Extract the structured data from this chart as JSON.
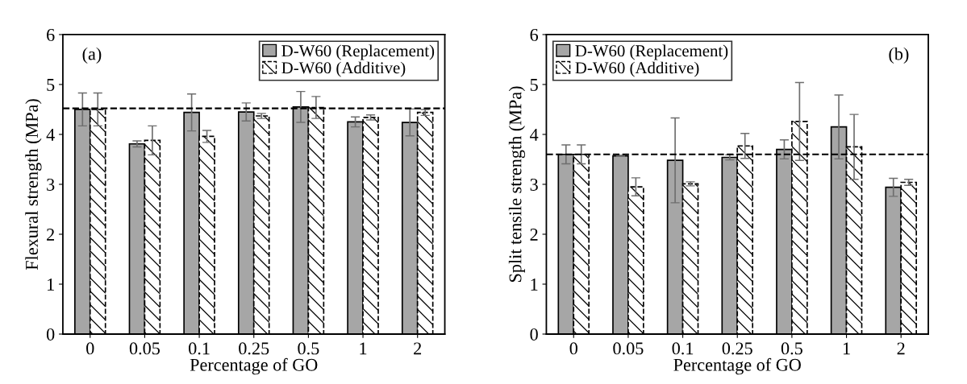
{
  "chart_data": [
    {
      "type": "bar",
      "categories": [
        "0",
        "0.05",
        "0.1",
        "0.25",
        "0.5",
        "1",
        "2"
      ],
      "xlabel": "Percentage of GO",
      "ylabel": "Flexural strength (MPa)",
      "ylim": [
        0,
        6
      ],
      "yticks": [
        0,
        1,
        2,
        3,
        4,
        5,
        6
      ],
      "grid": false,
      "legend": "top right",
      "annotations": [
        "(a)"
      ],
      "ref_lines": [
        {
          "axis": "y",
          "value": 4.52,
          "color": "#000000",
          "line_style": "dashed"
        }
      ],
      "series": [
        {
          "name": "D-W60 (Replacement)",
          "color": "#a6a6a6",
          "values": [
            4.5,
            3.81,
            4.44,
            4.45,
            4.55,
            4.25,
            4.24
          ],
          "errors": [
            0.33,
            0.06,
            0.37,
            0.18,
            0.31,
            0.1,
            0.27
          ]
        },
        {
          "name": "D-W60 (Additive)",
          "color": "#000000",
          "values": [
            4.5,
            3.88,
            3.96,
            4.37,
            4.54,
            4.34,
            4.44
          ],
          "errors": [
            0.33,
            0.29,
            0.12,
            0.05,
            0.22,
            0.05,
            0.06
          ]
        }
      ]
    },
    {
      "type": "bar",
      "categories": [
        "0",
        "0.05",
        "0.1",
        "0.25",
        "0.5",
        "1",
        "2"
      ],
      "xlabel": "Percentage of GO",
      "ylabel": "Split tensile strength (MPa)",
      "ylim": [
        0,
        6
      ],
      "yticks": [
        0,
        1,
        2,
        3,
        4,
        5,
        6
      ],
      "grid": false,
      "legend": "top left",
      "annotations": [
        "(b)"
      ],
      "ref_lines": [
        {
          "axis": "y",
          "value": 3.6,
          "color": "#000000",
          "line_style": "dashed"
        }
      ],
      "series": [
        {
          "name": "D-W60 (Replacement)",
          "color": "#a6a6a6",
          "values": [
            3.6,
            3.57,
            3.48,
            3.54,
            3.7,
            4.15,
            2.94
          ],
          "errors": [
            0.19,
            0.01,
            0.85,
            0.05,
            0.19,
            0.64,
            0.18
          ]
        },
        {
          "name": "D-W60 (Additive)",
          "color": "#000000",
          "values": [
            3.6,
            2.95,
            3.01,
            3.77,
            4.26,
            3.75,
            3.04
          ],
          "errors": [
            0.19,
            0.18,
            0.04,
            0.25,
            0.78,
            0.65,
            0.06
          ]
        }
      ]
    }
  ]
}
